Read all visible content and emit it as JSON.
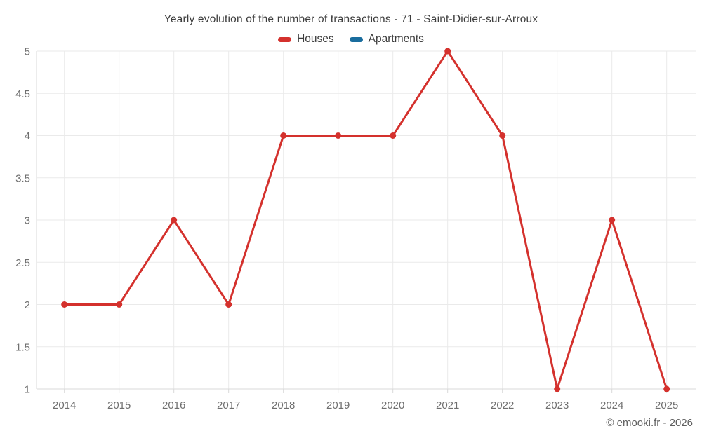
{
  "chart_data": {
    "type": "line",
    "title": "Yearly evolution of the number of transactions - 71 - Saint-Didier-sur-Arroux",
    "categories": [
      "2014",
      "2015",
      "2016",
      "2017",
      "2018",
      "2019",
      "2020",
      "2021",
      "2022",
      "2023",
      "2024",
      "2025"
    ],
    "series": [
      {
        "name": "Houses",
        "color": "#d4312d",
        "marker": "circle",
        "values": [
          2,
          2,
          3,
          2,
          4,
          4,
          4,
          5,
          4,
          1,
          3,
          1
        ]
      },
      {
        "name": "Apartments",
        "color": "#1a6d9e",
        "marker": "circle",
        "values": []
      }
    ],
    "ylim": [
      1,
      5
    ],
    "yticks": [
      "5",
      "4.5",
      "4",
      "3.5",
      "3",
      "2.5",
      "2",
      "1.5",
      "1"
    ],
    "xlabel": "",
    "ylabel": "",
    "grid": true,
    "legend_position": "top",
    "watermark": "© emooki.fr - 2026",
    "colors": {
      "background": "#ffffff",
      "gridline": "#eaeaea",
      "axis_line": "#d9d9d9",
      "tick_mark": "#d9d9d9",
      "axis_text": "#6f6f6f",
      "title_text": "#3d3d3d",
      "watermark_text": "#606060"
    }
  }
}
